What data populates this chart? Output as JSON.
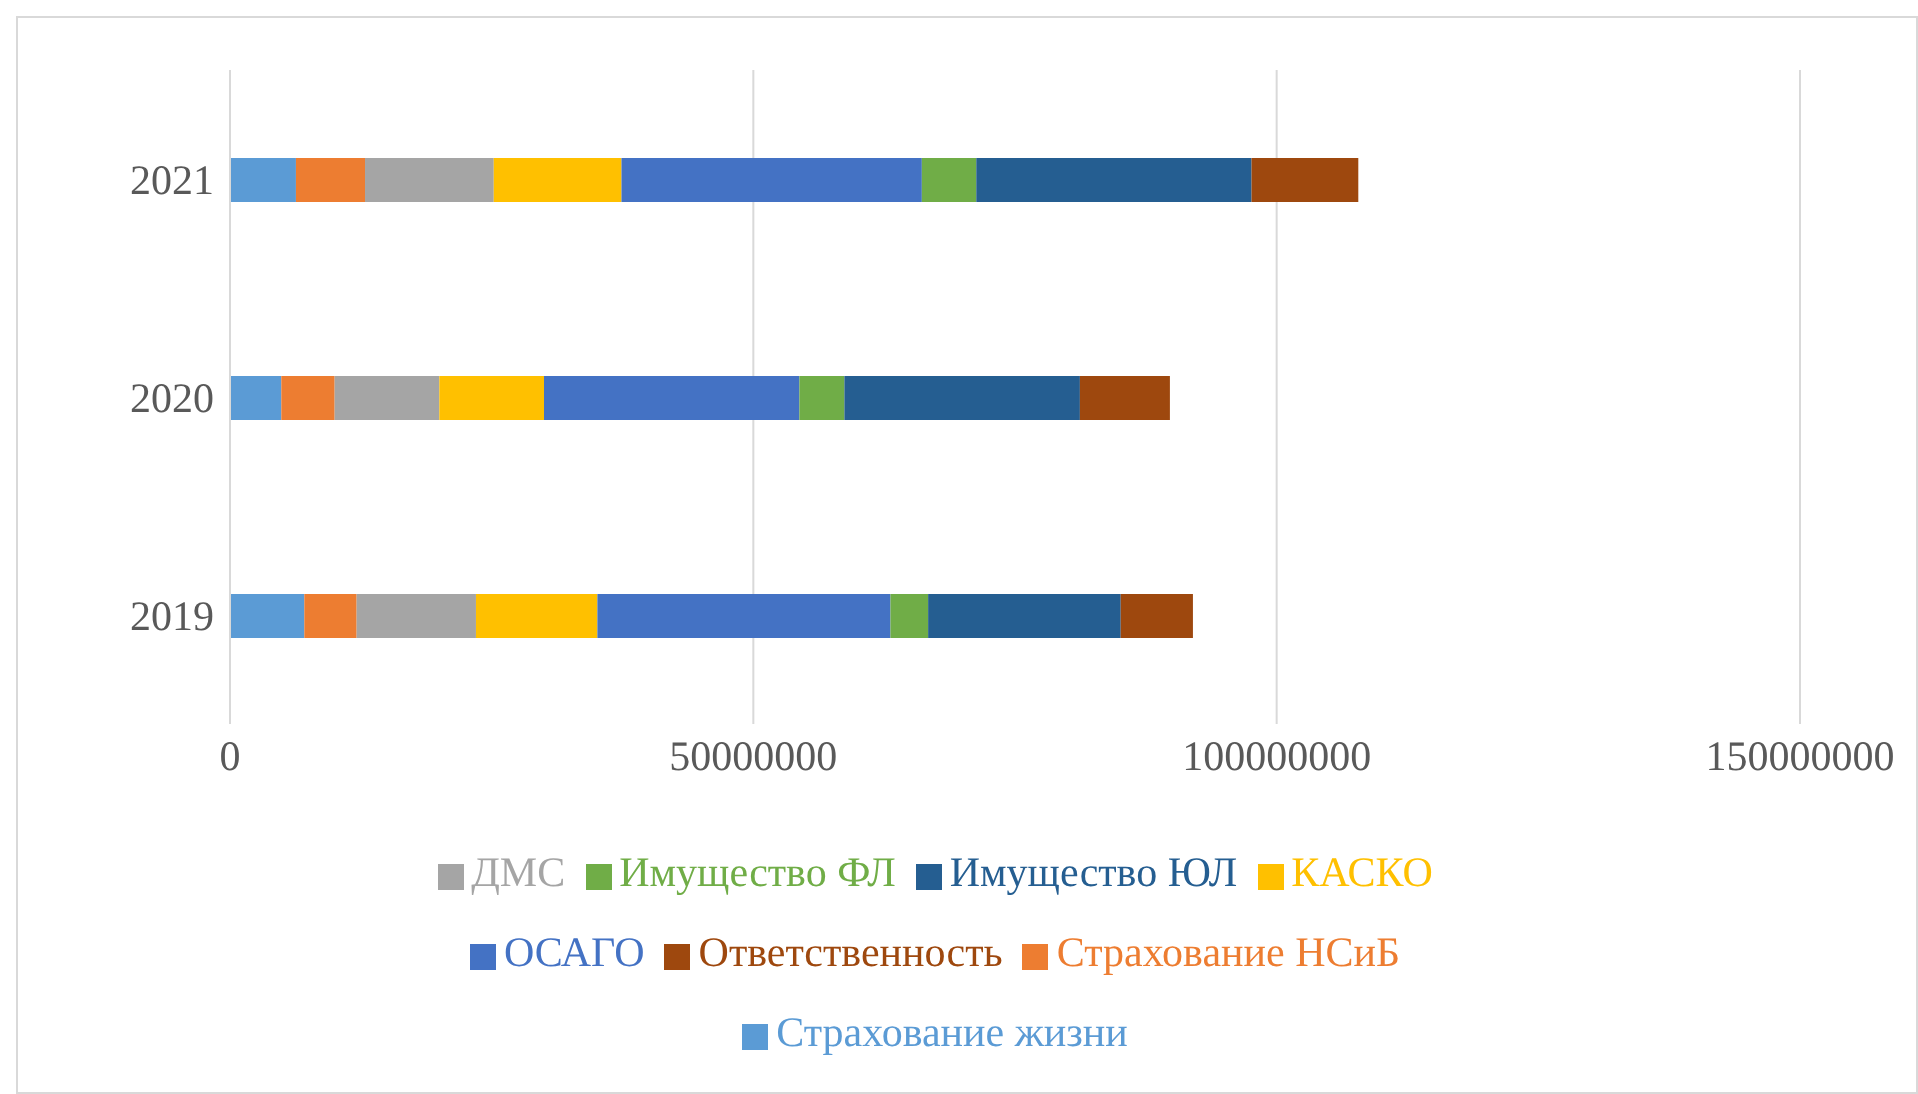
{
  "chart_data": {
    "type": "bar",
    "orientation": "horizontal",
    "stacked": true,
    "categories": [
      "2021",
      "2020",
      "2019"
    ],
    "series": [
      {
        "name": "Страхование жизни",
        "color": "#5b9bd5",
        "values": [
          6300000,
          4900000,
          7100000
        ]
      },
      {
        "name": "Страхование НСиБ",
        "color": "#ed7d31",
        "values": [
          6600000,
          5100000,
          5000000
        ]
      },
      {
        "name": "ДМС",
        "color": "#a5a5a5",
        "values": [
          12300000,
          10000000,
          11400000
        ]
      },
      {
        "name": "КАСКО",
        "color": "#ffc000",
        "values": [
          12200000,
          10000000,
          11600000
        ]
      },
      {
        "name": "ОСАГО",
        "color": "#4472c4",
        "values": [
          28700000,
          24400000,
          28000000
        ]
      },
      {
        "name": "Имущество ФЛ",
        "color": "#70ad47",
        "values": [
          5200000,
          4300000,
          3600000
        ]
      },
      {
        "name": "Имущество ЮЛ",
        "color": "#255e91",
        "values": [
          26300000,
          22500000,
          18400000
        ]
      },
      {
        "name": "Ответственность",
        "color": "#9e480e",
        "values": [
          10200000,
          8600000,
          6900000
        ]
      }
    ],
    "xlim": [
      0,
      150000000
    ],
    "xticks": [
      0,
      50000000,
      100000000,
      150000000
    ],
    "grid": "x",
    "legend": "bottom"
  }
}
